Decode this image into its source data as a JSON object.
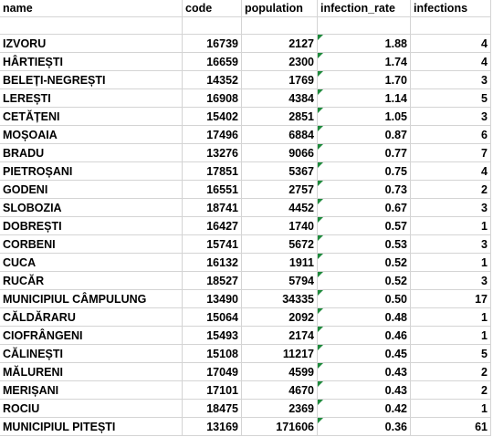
{
  "table": {
    "header": [
      "name",
      "code",
      "population",
      "infection_rate",
      "infections"
    ],
    "rows": [
      [
        "IZVORU",
        "16739",
        "2127",
        "1.88",
        "4"
      ],
      [
        "HÂRTIEȘTI",
        "16659",
        "2300",
        "1.74",
        "4"
      ],
      [
        "BELEȚI-NEGREȘTI",
        "14352",
        "1769",
        "1.70",
        "3"
      ],
      [
        "LEREȘTI",
        "16908",
        "4384",
        "1.14",
        "5"
      ],
      [
        "CETĂȚENI",
        "15402",
        "2851",
        "1.05",
        "3"
      ],
      [
        "MOȘOAIA",
        "17496",
        "6884",
        "0.87",
        "6"
      ],
      [
        "BRADU",
        "13276",
        "9066",
        "0.77",
        "7"
      ],
      [
        "PIETROȘANI",
        "17851",
        "5367",
        "0.75",
        "4"
      ],
      [
        "GODENI",
        "16551",
        "2757",
        "0.73",
        "2"
      ],
      [
        "SLOBOZIA",
        "18741",
        "4452",
        "0.67",
        "3"
      ],
      [
        "DOBREȘTI",
        "16427",
        "1740",
        "0.57",
        "1"
      ],
      [
        "CORBENI",
        "15741",
        "5672",
        "0.53",
        "3"
      ],
      [
        "CUCA",
        "16132",
        "1911",
        "0.52",
        "1"
      ],
      [
        "RUCĂR",
        "18527",
        "5794",
        "0.52",
        "3"
      ],
      [
        "MUNICIPIUL CÂMPULUNG",
        "13490",
        "34335",
        "0.50",
        "17"
      ],
      [
        "CĂLDĂRARU",
        "15064",
        "2092",
        "0.48",
        "1"
      ],
      [
        "CIOFRÂNGENI",
        "15493",
        "2174",
        "0.46",
        "1"
      ],
      [
        "CĂLINEȘTI",
        "15108",
        "11217",
        "0.45",
        "5"
      ],
      [
        "MĂLURENI",
        "17049",
        "4599",
        "0.43",
        "2"
      ],
      [
        "MERIȘANI",
        "17101",
        "4670",
        "0.43",
        "2"
      ],
      [
        "ROCIU",
        "18475",
        "2369",
        "0.42",
        "1"
      ],
      [
        "MUNICIPIUL PITEȘTI",
        "13169",
        "171606",
        "0.36",
        "61"
      ]
    ]
  }
}
